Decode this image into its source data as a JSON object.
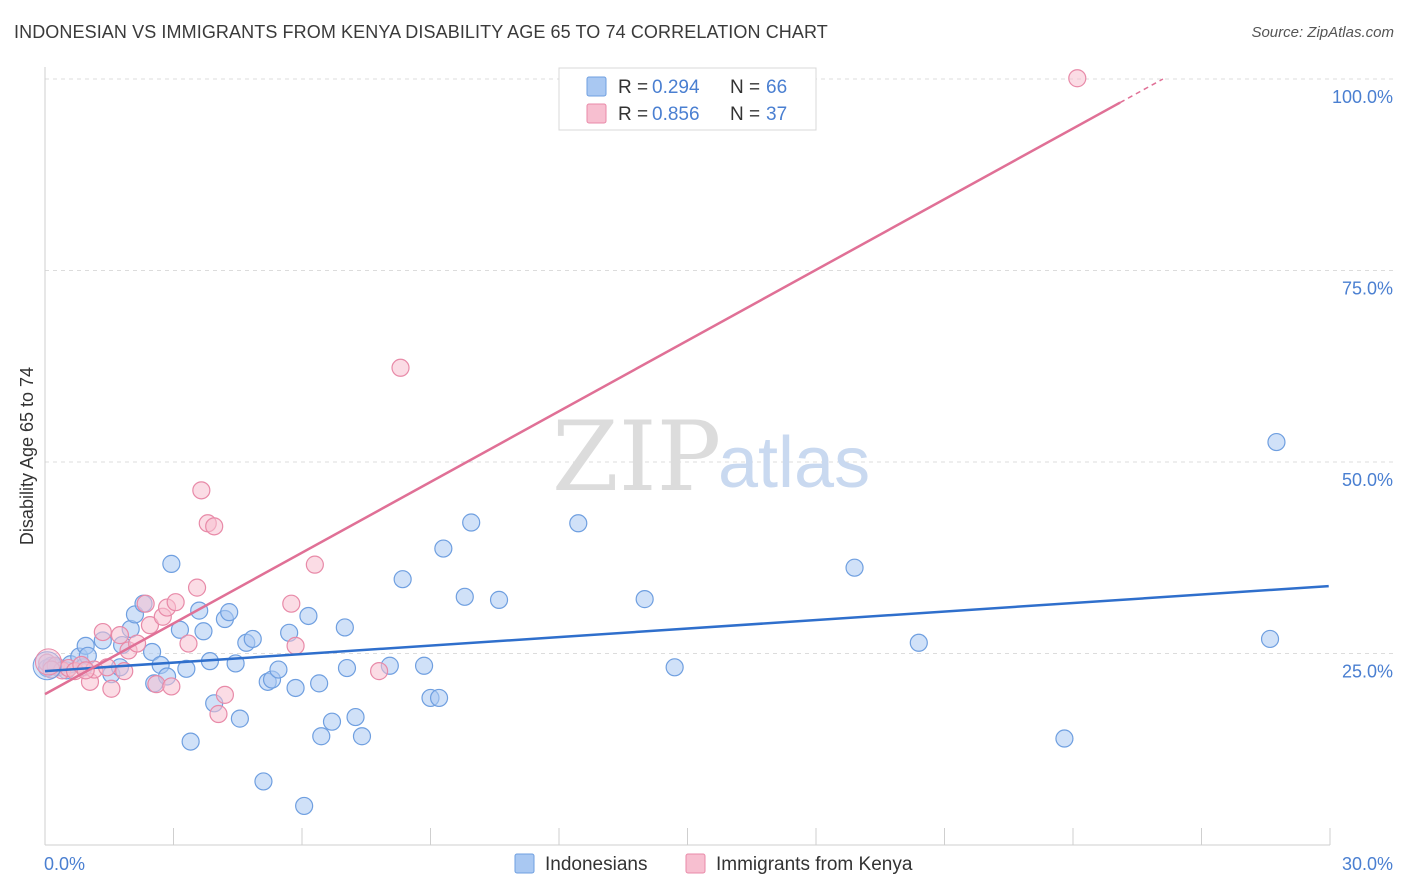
{
  "title": "INDONESIAN VS IMMIGRANTS FROM KENYA DISABILITY AGE 65 TO 74 CORRELATION CHART",
  "source": "Source: ZipAtlas.com",
  "watermark": {
    "zip": "ZIP",
    "atlas": "atlas"
  },
  "colors": {
    "blue_fill": "#a9c8f2",
    "blue_stroke": "#6f9fe0",
    "blue_line": "#2f6fcc",
    "pink_fill": "#f7bfd0",
    "pink_stroke": "#e88aa8",
    "pink_line": "#e07096",
    "tick_text": "#4a7fd1",
    "grid": "#dcdcdc"
  },
  "legend": {
    "rows": [
      {
        "r_label": "R =",
        "r_value": "0.294",
        "n_label": "N =",
        "n_value": "66"
      },
      {
        "r_label": "R =",
        "r_value": "0.856",
        "n_label": "N =",
        "n_value": "37"
      }
    ]
  },
  "chart_data": {
    "type": "scatter",
    "title": "INDONESIAN VS IMMIGRANTS FROM KENYA DISABILITY AGE 65 TO 74 CORRELATION CHART",
    "xlabel": "",
    "ylabel": "Disability Age 65 to 74",
    "xlim": [
      0,
      30
    ],
    "ylim": [
      0,
      100
    ],
    "x_ticks": [
      "0.0%",
      "30.0%"
    ],
    "y_ticks": [
      {
        "value": 25,
        "label": "25.0%"
      },
      {
        "value": 50,
        "label": "50.0%"
      },
      {
        "value": 75,
        "label": "75.0%"
      },
      {
        "value": 100,
        "label": "100.0%"
      }
    ],
    "grid": true,
    "legend_position": "top-center",
    "series": [
      {
        "name": "Indonesians",
        "color": "#a9c8f2",
        "trend": {
          "x0": 0,
          "y0": 22.7,
          "x1": 29.97,
          "y1": 33.8
        },
        "points": [
          [
            0.05,
            23.1
          ],
          [
            0.15,
            23.4
          ],
          [
            0.3,
            23.2
          ],
          [
            0.5,
            22.8
          ],
          [
            0.6,
            23.6
          ],
          [
            0.8,
            24.6
          ],
          [
            0.9,
            23.2
          ],
          [
            0.95,
            26.0
          ],
          [
            1.0,
            24.7
          ],
          [
            1.35,
            26.7
          ],
          [
            1.55,
            22.3
          ],
          [
            1.75,
            23.2
          ],
          [
            1.8,
            26.1
          ],
          [
            2.0,
            28.2
          ],
          [
            2.1,
            30.1
          ],
          [
            2.3,
            31.5
          ],
          [
            2.5,
            25.2
          ],
          [
            2.55,
            21.1
          ],
          [
            2.7,
            23.5
          ],
          [
            2.85,
            22.0
          ],
          [
            2.95,
            36.7
          ],
          [
            3.15,
            28.1
          ],
          [
            3.3,
            23.0
          ],
          [
            3.4,
            13.5
          ],
          [
            3.6,
            30.6
          ],
          [
            3.7,
            27.9
          ],
          [
            3.85,
            24.0
          ],
          [
            3.95,
            18.5
          ],
          [
            4.2,
            29.5
          ],
          [
            4.3,
            30.4
          ],
          [
            4.45,
            23.7
          ],
          [
            4.55,
            16.5
          ],
          [
            4.7,
            26.4
          ],
          [
            4.85,
            26.9
          ],
          [
            5.1,
            8.3
          ],
          [
            5.2,
            21.3
          ],
          [
            5.3,
            21.6
          ],
          [
            5.45,
            22.9
          ],
          [
            5.7,
            27.7
          ],
          [
            5.85,
            20.5
          ],
          [
            6.05,
            5.1
          ],
          [
            6.15,
            29.9
          ],
          [
            6.4,
            21.1
          ],
          [
            6.45,
            14.2
          ],
          [
            6.7,
            16.1
          ],
          [
            7.0,
            28.4
          ],
          [
            7.05,
            23.1
          ],
          [
            7.25,
            16.7
          ],
          [
            7.4,
            14.2
          ],
          [
            8.05,
            23.4
          ],
          [
            8.35,
            34.7
          ],
          [
            8.85,
            23.4
          ],
          [
            9.0,
            19.2
          ],
          [
            9.2,
            19.2
          ],
          [
            9.3,
            38.7
          ],
          [
            9.8,
            32.4
          ],
          [
            9.95,
            42.1
          ],
          [
            10.6,
            32.0
          ],
          [
            12.45,
            42.0
          ],
          [
            14.0,
            32.1
          ],
          [
            14.7,
            23.2
          ],
          [
            18.9,
            36.2
          ],
          [
            20.4,
            26.4
          ],
          [
            23.8,
            13.9
          ],
          [
            28.6,
            26.9
          ],
          [
            28.75,
            52.6
          ]
        ]
      },
      {
        "name": "Immigrants from Kenya",
        "color": "#f7bfd0",
        "trend": {
          "x0": 0,
          "y0": 19.7,
          "x1": 26.1,
          "y1": 100.0
        },
        "points": [
          [
            0.05,
            23.8
          ],
          [
            0.25,
            23.4
          ],
          [
            0.4,
            22.8
          ],
          [
            0.55,
            23.1
          ],
          [
            0.7,
            22.7
          ],
          [
            0.85,
            23.5
          ],
          [
            1.05,
            21.3
          ],
          [
            1.15,
            22.9
          ],
          [
            1.35,
            27.8
          ],
          [
            1.55,
            20.4
          ],
          [
            1.75,
            27.4
          ],
          [
            1.85,
            22.7
          ],
          [
            1.95,
            25.4
          ],
          [
            2.15,
            26.3
          ],
          [
            2.35,
            31.5
          ],
          [
            2.45,
            28.7
          ],
          [
            2.6,
            21.0
          ],
          [
            2.75,
            29.8
          ],
          [
            2.85,
            31.0
          ],
          [
            2.95,
            20.7
          ],
          [
            3.05,
            31.7
          ],
          [
            3.35,
            26.3
          ],
          [
            3.55,
            33.6
          ],
          [
            3.65,
            46.3
          ],
          [
            3.8,
            42.0
          ],
          [
            3.95,
            41.6
          ],
          [
            4.05,
            17.1
          ],
          [
            4.2,
            19.6
          ],
          [
            5.75,
            31.5
          ],
          [
            5.85,
            26.0
          ],
          [
            6.3,
            36.6
          ],
          [
            7.8,
            22.7
          ],
          [
            8.3,
            62.3
          ],
          [
            24.1,
            100.1
          ],
          [
            0.15,
            22.9
          ],
          [
            0.95,
            22.8
          ],
          [
            1.45,
            23.2
          ]
        ]
      }
    ]
  },
  "bottom_legend": [
    {
      "label": "Indonesians"
    },
    {
      "label": "Immigrants from Kenya"
    }
  ]
}
